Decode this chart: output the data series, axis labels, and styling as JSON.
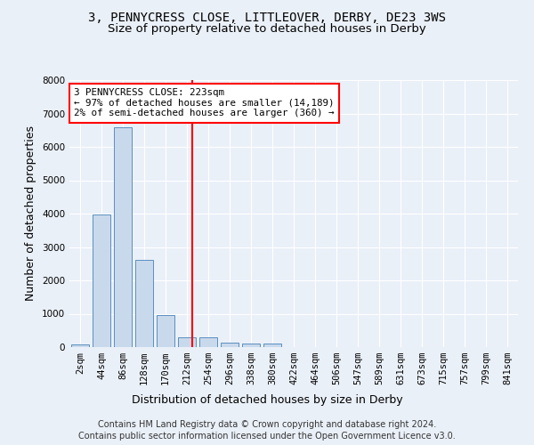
{
  "title": "3, PENNYCRESS CLOSE, LITTLEOVER, DERBY, DE23 3WS",
  "subtitle": "Size of property relative to detached houses in Derby",
  "xlabel": "Distribution of detached houses by size in Derby",
  "ylabel": "Number of detached properties",
  "bar_labels": [
    "2sqm",
    "44sqm",
    "86sqm",
    "128sqm",
    "170sqm",
    "212sqm",
    "254sqm",
    "296sqm",
    "338sqm",
    "380sqm",
    "422sqm",
    "464sqm",
    "506sqm",
    "547sqm",
    "589sqm",
    "631sqm",
    "673sqm",
    "715sqm",
    "757sqm",
    "799sqm",
    "841sqm"
  ],
  "bar_values": [
    80,
    3980,
    6600,
    2620,
    950,
    300,
    300,
    130,
    100,
    100,
    0,
    0,
    0,
    0,
    0,
    0,
    0,
    0,
    0,
    0,
    0
  ],
  "bar_color": "#c9d9ec",
  "bar_edge_color": "#5a8fc0",
  "property_line_x": 5.27,
  "property_line_color": "red",
  "annotation_box_text": "3 PENNYCRESS CLOSE: 223sqm\n← 97% of detached houses are smaller (14,189)\n2% of semi-detached houses are larger (360) →",
  "annotation_box_color": "red",
  "annotation_box_fill": "white",
  "ylim": [
    0,
    8000
  ],
  "yticks": [
    0,
    1000,
    2000,
    3000,
    4000,
    5000,
    6000,
    7000,
    8000
  ],
  "footer_line1": "Contains HM Land Registry data © Crown copyright and database right 2024.",
  "footer_line2": "Contains public sector information licensed under the Open Government Licence v3.0.",
  "background_color": "#eaf0f8",
  "grid_color": "#ffffff",
  "title_fontsize": 10,
  "subtitle_fontsize": 9.5,
  "axis_label_fontsize": 9,
  "tick_fontsize": 7.5,
  "footer_fontsize": 7
}
